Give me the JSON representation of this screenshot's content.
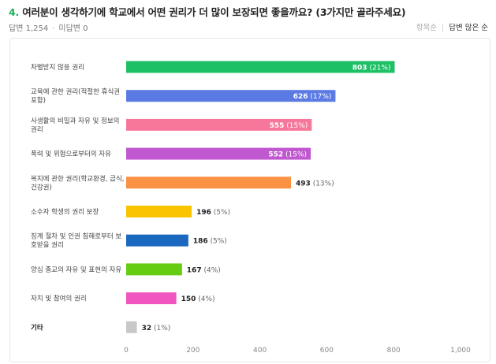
{
  "header": {
    "question_number": "4.",
    "question_text": " 여러분이 생각하기에 학교에서 어떤 권리가 더 많이 보장되면 좋을까요? (3가지만 골라주세요)",
    "answers": "답변 1,254",
    "dot": "·",
    "unanswered": "미답변 0",
    "sort_options": [
      "항목순",
      "답변 많은 순"
    ],
    "sort_separator": "|"
  },
  "colors": {
    "accent": "#1ab35a"
  },
  "chart_data": {
    "type": "bar",
    "orientation": "horizontal",
    "xlim": [
      0,
      1000
    ],
    "x_ticks": [
      "0",
      "200",
      "400",
      "600",
      "800",
      "1,000"
    ],
    "categories": [
      {
        "label_lines": [
          "차별받지 않을 권리"
        ],
        "value": 803,
        "value_label": "803",
        "pct": "(21%)",
        "color": "#1ec065",
        "bold_label": false
      },
      {
        "label_lines": [
          "교육에 관한 권리(적절한 휴식권",
          "포함)"
        ],
        "value": 626,
        "value_label": "626",
        "pct": "(17%)",
        "color": "#5b7ae3",
        "bold_label": false
      },
      {
        "label_lines": [
          "사생활의 비밀과 자유 및 정보의",
          "권리"
        ],
        "value": 555,
        "value_label": "555",
        "pct": "(15%)",
        "color": "#f7779a",
        "bold_label": false
      },
      {
        "label_lines": [
          "폭력 및 위험으로부터의 자유"
        ],
        "value": 552,
        "value_label": "552",
        "pct": "(15%)",
        "color": "#c058cf",
        "bold_label": false
      },
      {
        "label_lines": [
          "복지에 관한 권리(학교환경, 급식,",
          "건강권)"
        ],
        "value": 493,
        "value_label": "493",
        "pct": "(13%)",
        "color": "#fb9142",
        "bold_label": false
      },
      {
        "label_lines": [
          "소수자 학생의 권리 보장"
        ],
        "value": 196,
        "value_label": "196",
        "pct": "(5%)",
        "color": "#fbc400",
        "bold_label": false
      },
      {
        "label_lines": [
          "징계 절차 및 인권 침해로부터 보",
          "호받을 권리"
        ],
        "value": 186,
        "value_label": "186",
        "pct": "(5%)",
        "color": "#1a68bf",
        "bold_label": false
      },
      {
        "label_lines": [
          "양심 종교의 자유 및 표현의 자유"
        ],
        "value": 167,
        "value_label": "167",
        "pct": "(4%)",
        "color": "#65cc12",
        "bold_label": false
      },
      {
        "label_lines": [
          "자치 및 참여의 권리"
        ],
        "value": 150,
        "value_label": "150",
        "pct": "(4%)",
        "color": "#f155bf",
        "bold_label": false
      },
      {
        "label_lines": [
          "기타"
        ],
        "value": 32,
        "value_label": "32",
        "pct": "(1%)",
        "color": "#c8c8c8",
        "bold_label": true
      }
    ]
  }
}
